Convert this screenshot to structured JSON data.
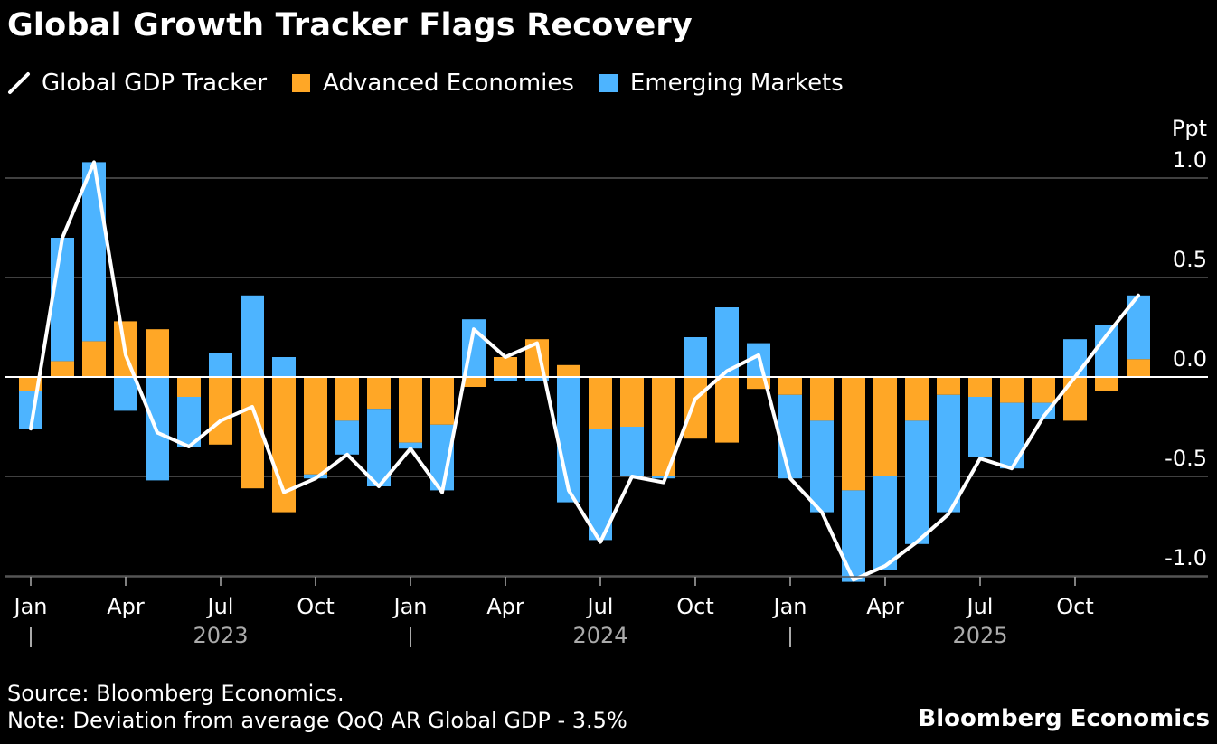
{
  "chart_data": {
    "type": "bar",
    "title": "Global Growth Tracker Flags Recovery",
    "ylabel": "Ppt",
    "ylim": [
      -1.0,
      1.0
    ],
    "yticks": [
      1.0,
      0.5,
      0.0,
      -0.5,
      -1.0
    ],
    "ytick_labels": [
      "1.0",
      "0.5",
      "0.0",
      "-0.5",
      "-1.0"
    ],
    "grid": true,
    "stacked": true,
    "legend_position": "top-left",
    "categories": [
      "2023-01",
      "2023-02",
      "2023-03",
      "2023-04",
      "2023-05",
      "2023-06",
      "2023-07",
      "2023-08",
      "2023-09",
      "2023-10",
      "2023-11",
      "2023-12",
      "2024-01",
      "2024-02",
      "2024-03",
      "2024-04",
      "2024-05",
      "2024-06",
      "2024-07",
      "2024-08",
      "2024-09",
      "2024-10",
      "2024-11",
      "2024-12",
      "2025-01",
      "2025-02",
      "2025-03",
      "2025-04",
      "2025-05",
      "2025-06",
      "2025-07",
      "2025-08",
      "2025-09",
      "2025-10",
      "2025-11",
      "2025-12"
    ],
    "month_ticks": [
      {
        "index": 0,
        "label": "Jan"
      },
      {
        "index": 3,
        "label": "Apr"
      },
      {
        "index": 6,
        "label": "Jul"
      },
      {
        "index": 9,
        "label": "Oct"
      },
      {
        "index": 12,
        "label": "Jan"
      },
      {
        "index": 15,
        "label": "Apr"
      },
      {
        "index": 18,
        "label": "Jul"
      },
      {
        "index": 21,
        "label": "Oct"
      },
      {
        "index": 24,
        "label": "Jan"
      },
      {
        "index": 27,
        "label": "Apr"
      },
      {
        "index": 30,
        "label": "Jul"
      },
      {
        "index": 33,
        "label": "Oct"
      }
    ],
    "year_labels": [
      {
        "label": "2023",
        "center_index": 6,
        "divider_index": 0
      },
      {
        "label": "2024",
        "center_index": 18,
        "divider_index": 12
      },
      {
        "label": "2025",
        "center_index": 30,
        "divider_index": 24
      }
    ],
    "series": [
      {
        "name": "Advanced Economies",
        "kind": "bar",
        "color": "#ffa726",
        "values": [
          -0.07,
          0.08,
          0.18,
          0.28,
          0.24,
          -0.1,
          -0.34,
          -0.56,
          -0.68,
          -0.49,
          -0.22,
          -0.16,
          -0.33,
          -0.24,
          -0.05,
          0.1,
          0.19,
          0.06,
          -0.26,
          -0.25,
          -0.5,
          -0.31,
          -0.33,
          -0.06,
          -0.09,
          -0.22,
          -0.57,
          -0.5,
          -0.22,
          -0.09,
          -0.1,
          -0.13,
          -0.13,
          -0.22,
          -0.07,
          0.09
        ]
      },
      {
        "name": "Emerging Markets",
        "kind": "bar",
        "color": "#4db4ff",
        "values": [
          -0.19,
          0.62,
          0.9,
          -0.17,
          -0.52,
          -0.25,
          0.12,
          0.41,
          0.1,
          -0.02,
          -0.17,
          -0.39,
          -0.03,
          -0.33,
          0.29,
          -0.02,
          -0.02,
          -0.63,
          -0.56,
          -0.25,
          -0.01,
          0.2,
          0.35,
          0.17,
          -0.42,
          -0.46,
          -0.46,
          -0.47,
          -0.62,
          -0.59,
          -0.3,
          -0.33,
          -0.08,
          0.19,
          0.26,
          0.32
        ]
      },
      {
        "name": "Global GDP Tracker",
        "kind": "line",
        "color": "#ffffff",
        "values": [
          -0.26,
          0.7,
          1.08,
          0.11,
          -0.28,
          -0.35,
          -0.22,
          -0.15,
          -0.58,
          -0.51,
          -0.39,
          -0.55,
          -0.36,
          -0.58,
          0.24,
          0.1,
          0.17,
          -0.57,
          -0.83,
          -0.5,
          -0.53,
          -0.11,
          0.03,
          0.11,
          -0.51,
          -0.68,
          -1.02,
          -0.95,
          -0.83,
          -0.69,
          -0.41,
          -0.46,
          -0.2,
          0.0,
          0.21,
          0.41
        ]
      }
    ]
  },
  "footer": {
    "source": "Source: Bloomberg Economics.",
    "note": "Note: Deviation from average QoQ AR Global GDP - 3.5%",
    "brand": "Bloomberg Economics"
  },
  "colors": {
    "background": "#000000",
    "gridline": "#555555",
    "zero_line": "#ffffff",
    "text": "#ffffff",
    "muted_text": "#aaaaaa"
  }
}
